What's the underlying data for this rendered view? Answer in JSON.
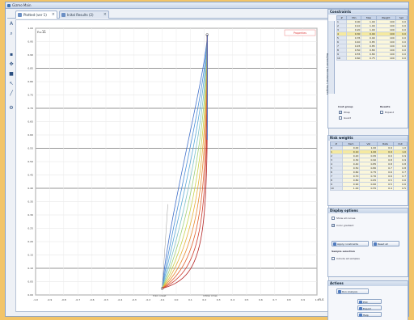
{
  "window": {
    "title": "Gizmo Main"
  },
  "tabs": [
    {
      "label": "Plotted (ver 1)",
      "active": true
    },
    {
      "label": "Inital Results (2)",
      "active": false
    }
  ],
  "plot": {
    "corner_label": "n=11",
    "legend_button": "Properties",
    "y_ticks": [
      "1.00",
      "0.95",
      "0.90",
      "0.85",
      "0.80",
      "0.75",
      "0.70",
      "0.65",
      "0.60",
      "0.55",
      "0.50",
      "0.45",
      "0.40",
      "0.35",
      "0.30",
      "0.25",
      "0.20",
      "0.15",
      "0.10",
      "0.05",
      "0.00"
    ],
    "x_ticks": [
      "-1.0",
      "-0.9",
      "-0.8",
      "-0.7",
      "-0.6",
      "-0.5",
      "-0.4",
      "-0.3",
      "-0.2",
      "-0.1",
      "0.0",
      "0.1",
      "0.2",
      "0.3",
      "0.4",
      "0.5",
      "0.6",
      "0.7",
      "0.8",
      "0.9",
      "1.0"
    ],
    "bottom_labels": [
      "Train onset",
      "Inflow cross"
    ],
    "x_axis_label": "FLS",
    "curve_colors": [
      "#3f6fc9",
      "#4a8fd8",
      "#5aa9d6",
      "#7ec2c8",
      "#9fd07a",
      "#c9d24a",
      "#e6b13a",
      "#e88a2e",
      "#e25f2a",
      "#cf3a2a",
      "#b22222"
    ]
  },
  "constraints": {
    "title": "Constraints",
    "side_tab": "Regression | Boundaries | Weights",
    "headers": [
      "#",
      "Min",
      "Max",
      "Weight",
      "Set"
    ],
    "rows": [
      [
        "1",
        "0.00",
        "1.00",
        "100",
        "0.0"
      ],
      [
        "2",
        "0.10",
        "1.00",
        "100",
        "0.0"
      ],
      [
        "3",
        "0.20",
        "1.00",
        "100",
        "0.0"
      ],
      [
        "4",
        "0.30",
        "0.90",
        "100",
        "0.0"
      ],
      [
        "5",
        "0.35",
        "0.90",
        "100",
        "0.0"
      ],
      [
        "6",
        "0.40",
        "0.85",
        "100",
        "0.0"
      ],
      [
        "7",
        "0.45",
        "0.85",
        "100",
        "0.0"
      ],
      [
        "8",
        "0.50",
        "0.80",
        "100",
        "0.0"
      ],
      [
        "9",
        "0.55",
        "0.80",
        "100",
        "0.0"
      ],
      [
        "10",
        "0.60",
        "0.75",
        "100",
        "0.0"
      ]
    ],
    "opt_left_title": "Cost group",
    "opt_left_items": [
      "Wrap",
      "Guard"
    ],
    "opt_right_title": "Results",
    "opt_right_items": [
      "Expand"
    ]
  },
  "weights": {
    "title": "Risk weights",
    "headers": [
      "#",
      "Item",
      "Val",
      "Rate",
      "Out"
    ],
    "rows": [
      [
        "0",
        "0.00",
        "1.00",
        "0.9",
        "1.0"
      ],
      [
        "1",
        "0.10",
        "1.00",
        "0.9",
        "1.0"
      ],
      [
        "2",
        "0.20",
        "0.95",
        "0.9",
        "0.9"
      ],
      [
        "3",
        "0.30",
        "0.90",
        "0.8",
        "0.9"
      ],
      [
        "4",
        "0.40",
        "0.85",
        "0.8",
        "0.8"
      ],
      [
        "5",
        "0.50",
        "0.80",
        "0.7",
        "0.8"
      ],
      [
        "6",
        "0.60",
        "0.75",
        "0.6",
        "0.7"
      ],
      [
        "7",
        "0.70",
        "0.70",
        "0.6",
        "0.7"
      ],
      [
        "8",
        "0.80",
        "0.65",
        "0.5",
        "0.6"
      ],
      [
        "9",
        "0.90",
        "0.60",
        "0.5",
        "0.6"
      ],
      [
        "10",
        "1.00",
        "0.55",
        "0.4",
        "0.5"
      ]
    ]
  },
  "display": {
    "title": "Display options",
    "opt_1": "Show all curves",
    "opt_2": "Color gradient",
    "btn_1": "Apply constraints",
    "btn_2": "Reset all",
    "sub_title": "Sample selection",
    "opt_3": "Include all samples"
  },
  "actions": {
    "title": "Actions",
    "top_button": "Run Analysis",
    "buttons": [
      "Plot",
      "Export",
      "Help"
    ]
  }
}
